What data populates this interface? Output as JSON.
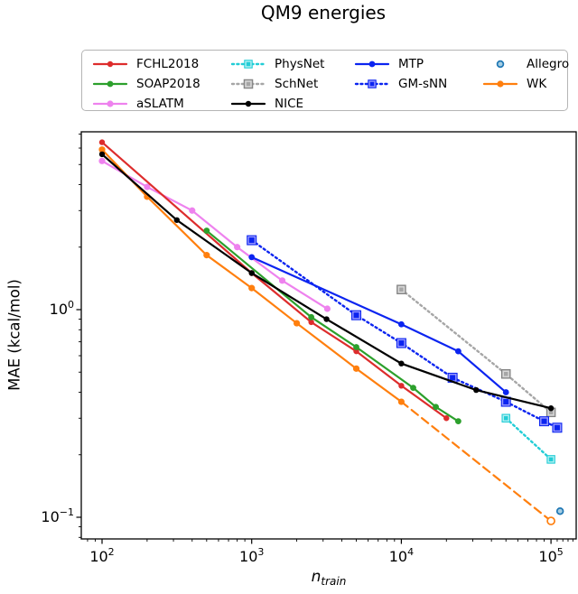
{
  "title": "QM9 energies",
  "axes": {
    "ylabel": "MAE (kcal/mol)",
    "xlabel_main": "n",
    "xlabel_sub": "train",
    "x_major": [
      {
        "value": 100,
        "exp": "2"
      },
      {
        "value": 1000,
        "exp": "3"
      },
      {
        "value": 10000,
        "exp": "4"
      },
      {
        "value": 100000,
        "exp": "5"
      }
    ],
    "y_major": [
      {
        "value": 1,
        "exp": "0"
      },
      {
        "value": 0.1,
        "exp": "−1"
      }
    ],
    "xlim": [
      72,
      148000
    ],
    "ylim": [
      0.079,
      7.2
    ]
  },
  "legend": {
    "columns": [
      [
        "FCHL2018",
        "SOAP2018",
        "aSLATM"
      ],
      [
        "PhysNet",
        "SchNet",
        "NICE"
      ],
      [
        "MTP",
        "GM-sNN"
      ],
      [
        "Allegro",
        "WK"
      ]
    ]
  },
  "chart_data": {
    "type": "line",
    "title": "QM9 energies",
    "xlabel": "n_train",
    "ylabel": "MAE (kcal/mol)",
    "xscale": "log",
    "yscale": "log",
    "xlim": [
      72,
      148000
    ],
    "ylim": [
      0.079,
      7.2
    ],
    "grid": false,
    "legend_position": "upper center",
    "series": [
      {
        "name": "aSLATM",
        "color": "#ee82ee",
        "line": "solid",
        "marker": "circle",
        "marker_size": 3.6,
        "points": [
          [
            100,
            5.2
          ],
          [
            200,
            3.9
          ],
          [
            400,
            3.0
          ],
          [
            800,
            2.0
          ],
          [
            1600,
            1.38
          ],
          [
            3200,
            1.01
          ]
        ]
      },
      {
        "name": "FCHL2018",
        "color": "#dd2c2c",
        "line": "solid",
        "marker": "circle",
        "marker_size": 3.2,
        "points": [
          [
            100,
            6.4
          ],
          [
            1000,
            1.5
          ],
          [
            2500,
            0.87
          ],
          [
            5000,
            0.63
          ],
          [
            10000,
            0.43
          ],
          [
            20000,
            0.3
          ]
        ]
      },
      {
        "name": "SOAP2018",
        "color": "#2ca02c",
        "line": "solid",
        "marker": "circle",
        "marker_size": 3.4,
        "points": [
          [
            500,
            2.4
          ],
          [
            2500,
            0.92
          ],
          [
            5000,
            0.66
          ],
          [
            12000,
            0.42
          ],
          [
            17000,
            0.34
          ],
          [
            24000,
            0.29
          ]
        ]
      },
      {
        "name": "WK",
        "color": "#ff7f0e",
        "line": "solid",
        "marker": "circle",
        "marker_size": 3.6,
        "dashed_after": 10000,
        "end_marker": "open-circle",
        "marker_face": "#ffffff",
        "points": [
          [
            100,
            5.9
          ],
          [
            200,
            3.5
          ],
          [
            500,
            1.83
          ],
          [
            1000,
            1.27
          ],
          [
            2000,
            0.86
          ],
          [
            5000,
            0.52
          ],
          [
            10000,
            0.36
          ],
          [
            100000,
            0.096
          ]
        ]
      },
      {
        "name": "SchNet",
        "color": "#a6a6a6",
        "line": "dotted",
        "marker": "square",
        "marker_size": 9.5,
        "marker_inner": "#d9d9d9",
        "marker_edge": "#7f7f7f",
        "points": [
          [
            10000,
            1.25
          ],
          [
            50000,
            0.49
          ],
          [
            100000,
            0.32
          ]
        ]
      },
      {
        "name": "PhysNet",
        "color": "#22cdd6",
        "line": "dotted",
        "marker": "square",
        "marker_size": 9.5,
        "marker_inner": "#b2f0f2",
        "points": [
          [
            50000,
            0.3
          ],
          [
            100000,
            0.19
          ]
        ]
      },
      {
        "name": "GM-sNN",
        "color": "#0b24f0",
        "line": "dotted",
        "marker": "square",
        "marker_size": 11,
        "marker_inner": "#9a9aff",
        "points": [
          [
            1000,
            2.16
          ],
          [
            5000,
            0.94
          ],
          [
            10000,
            0.69
          ],
          [
            22000,
            0.47
          ],
          [
            50000,
            0.36
          ],
          [
            90000,
            0.29
          ],
          [
            110000,
            0.27
          ]
        ]
      },
      {
        "name": "MTP",
        "color": "#0b24f0",
        "line": "solid",
        "marker": "circle",
        "marker_size": 3.4,
        "points": [
          [
            1000,
            1.79
          ],
          [
            10000,
            0.85
          ],
          [
            24000,
            0.63
          ],
          [
            50000,
            0.4
          ]
        ]
      },
      {
        "name": "NICE",
        "color": "#000000",
        "line": "solid",
        "marker": "circle",
        "marker_size": 3.2,
        "points": [
          [
            100,
            5.6
          ],
          [
            316,
            2.7
          ],
          [
            1000,
            1.5
          ],
          [
            3162,
            0.9
          ],
          [
            10000,
            0.55
          ],
          [
            31623,
            0.41
          ],
          [
            100000,
            0.335
          ]
        ]
      },
      {
        "name": "Allegro",
        "color": "#1f77b4",
        "line": "none",
        "marker": "open-circle",
        "marker_size": 3,
        "marker_face": "#a6cee3",
        "points": [
          [
            115000,
            0.107
          ]
        ]
      }
    ]
  }
}
